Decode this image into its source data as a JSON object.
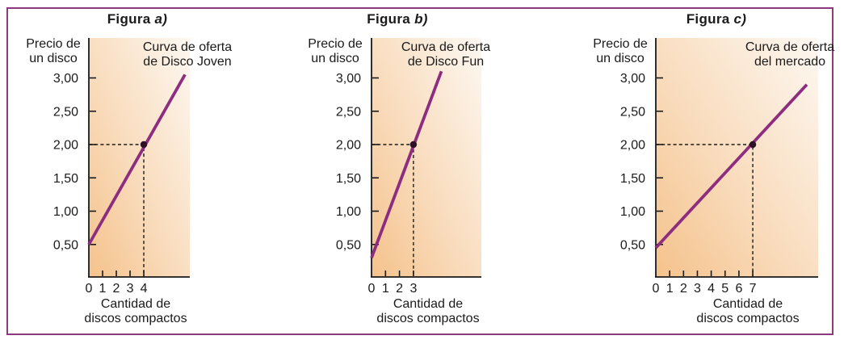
{
  "colors": {
    "frame_border": "#8c3a7c",
    "supply_curve": "#8d2d7f",
    "marked_point": "#2d1126",
    "axis": "#1a1a1a",
    "gradient_bottom_left": "#f5c28c",
    "gradient_mid": "#f9dcbd",
    "gradient_top_right": "#fdf8f2"
  },
  "chart_data": [
    {
      "type": "line",
      "figure_label_prefix": "Figura",
      "figure_label_letter": "a)",
      "curve_title_line1": "Curva de oferta",
      "curve_title_line2": "de Disco Joven",
      "series_name": "Curva de oferta de Disco Joven",
      "ylabel_line1": "Precio de",
      "ylabel_line2": "un disco",
      "xlabel_line1": "Cantidad de",
      "xlabel_line2": "discos compactos",
      "y_tick_labels": [
        "3,00",
        "2,50",
        "2,00",
        "1,50",
        "1,00",
        "0,50"
      ],
      "y_tick_values": [
        3.0,
        2.5,
        2.0,
        1.5,
        1.0,
        0.5
      ],
      "x_tick_labels": [
        "0",
        "1",
        "2",
        "3",
        "4"
      ],
      "x_tick_values": [
        0,
        1,
        2,
        3,
        4
      ],
      "xlim": [
        0,
        7.35
      ],
      "ylim": [
        0,
        3.6
      ],
      "line": [
        [
          0,
          0.5
        ],
        [
          7.0,
          3.05
        ]
      ],
      "marked_point": {
        "x": 4,
        "y": 2.0
      }
    },
    {
      "type": "line",
      "figure_label_prefix": "Figura",
      "figure_label_letter": "b)",
      "curve_title_line1": "Curva de oferta",
      "curve_title_line2": "de Disco Fun",
      "series_name": "Curva de oferta de Disco Fun",
      "ylabel_line1": "Precio de",
      "ylabel_line2": "un disco",
      "xlabel_line1": "Cantidad de",
      "xlabel_line2": "discos compactos",
      "y_tick_labels": [
        "3,00",
        "2,50",
        "2,00",
        "1,50",
        "1,00",
        "0,50"
      ],
      "y_tick_values": [
        3.0,
        2.5,
        2.0,
        1.5,
        1.0,
        0.5
      ],
      "x_tick_labels": [
        "0",
        "1",
        "2",
        "3"
      ],
      "x_tick_values": [
        0,
        1,
        2,
        3
      ],
      "xlim": [
        0,
        7.86
      ],
      "ylim": [
        0,
        3.6
      ],
      "line": [
        [
          0,
          0.3
        ],
        [
          5.0,
          3.1
        ]
      ],
      "marked_point": {
        "x": 3,
        "y": 2.0
      }
    },
    {
      "type": "line",
      "figure_label_prefix": "Figura",
      "figure_label_letter": "c)",
      "curve_title_line1": "Curva de oferta",
      "curve_title_line2": "del mercado",
      "series_name": "Curva de oferta del mercado",
      "ylabel_line1": "Precio de",
      "ylabel_line2": "un disco",
      "xlabel_line1": "Cantidad de",
      "xlabel_line2": "discos compactos",
      "y_tick_labels": [
        "3,00",
        "2,50",
        "2,00",
        "1,50",
        "1,00",
        "0,50"
      ],
      "y_tick_values": [
        3.0,
        2.5,
        2.0,
        1.5,
        1.0,
        0.5
      ],
      "x_tick_labels": [
        "0",
        "1",
        "2",
        "3",
        "4",
        "5",
        "6",
        "7"
      ],
      "x_tick_values": [
        0,
        1,
        2,
        3,
        4,
        5,
        6,
        7
      ],
      "xlim": [
        0,
        11.72
      ],
      "ylim": [
        0,
        3.6
      ],
      "line": [
        [
          0,
          0.45
        ],
        [
          10.9,
          2.9
        ]
      ],
      "marked_point": {
        "x": 7,
        "y": 2.0
      }
    }
  ]
}
